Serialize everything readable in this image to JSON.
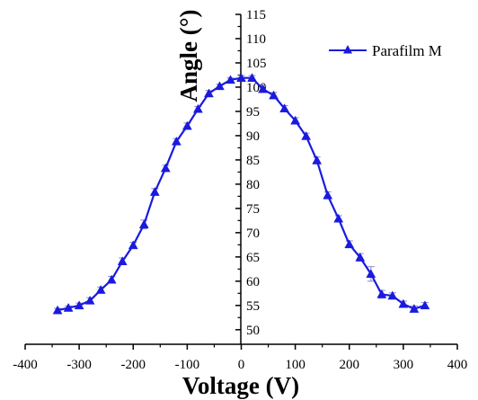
{
  "chart_data": {
    "type": "line",
    "title": "",
    "xlabel": "Voltage (V)",
    "ylabel": "Angle (°)",
    "xlim": [
      -400,
      400
    ],
    "ylim": [
      47,
      115
    ],
    "x_ticks": [
      -400,
      -300,
      -200,
      -100,
      0,
      100,
      200,
      300,
      400
    ],
    "x_tick_labels": [
      "-400",
      "-300",
      "-200",
      "-100",
      "0",
      "100",
      "200",
      "300",
      "400"
    ],
    "y_ticks": [
      50,
      55,
      60,
      65,
      70,
      75,
      80,
      85,
      90,
      95,
      100,
      105,
      110,
      115
    ],
    "y_tick_labels": [
      "50",
      "55",
      "60",
      "65",
      "70",
      "75",
      "80",
      "85",
      "90",
      "95",
      "100",
      "105",
      "110",
      "115"
    ],
    "legend_position": "top-right",
    "grid": false,
    "series": [
      {
        "name": "Parafilm M",
        "color": "#1a1adf",
        "marker": "triangle",
        "x": [
          -340,
          -320,
          -300,
          -280,
          -260,
          -240,
          -220,
          -200,
          -180,
          -160,
          -140,
          -120,
          -100,
          -80,
          -60,
          -40,
          -20,
          0,
          20,
          40,
          60,
          80,
          100,
          120,
          140,
          160,
          180,
          200,
          220,
          240,
          260,
          280,
          300,
          320,
          340
        ],
        "y": [
          54.0,
          54.5,
          55.0,
          56.0,
          58.2,
          60.3,
          64.1,
          67.4,
          71.7,
          78.4,
          83.3,
          88.8,
          92.0,
          95.5,
          98.7,
          100.2,
          101.5,
          101.9,
          101.9,
          99.6,
          98.3,
          95.6,
          93.1,
          89.9,
          84.9,
          77.7,
          72.9,
          67.6,
          64.9,
          61.5,
          57.3,
          57.0,
          55.3,
          54.3,
          55.0
        ],
        "error": [
          0.4,
          0.4,
          0.5,
          0.6,
          0.6,
          0.7,
          0.7,
          0.6,
          0.9,
          0.7,
          0.6,
          0.6,
          0.6,
          0.5,
          0.6,
          0.4,
          0.4,
          0.5,
          0.5,
          0.6,
          0.6,
          0.6,
          0.6,
          0.6,
          0.7,
          0.7,
          0.6,
          0.7,
          0.8,
          1.5,
          0.8,
          0.6,
          0.6,
          0.6,
          0.6
        ]
      }
    ]
  }
}
